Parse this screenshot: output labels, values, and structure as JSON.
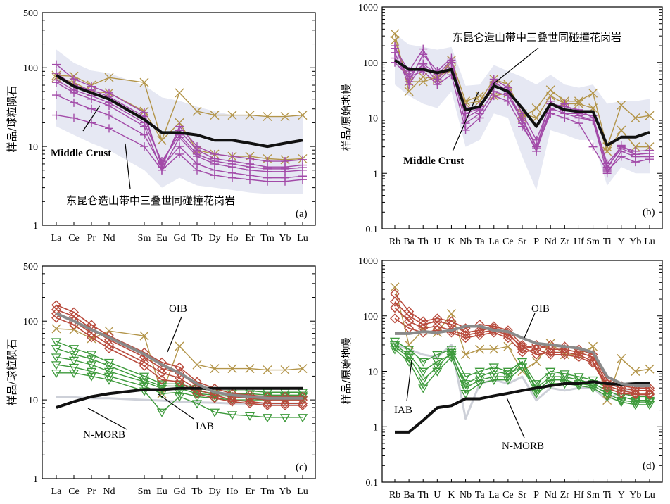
{
  "colors": {
    "black": "#111111",
    "tan": "#b3954a",
    "magenta": "#a24aa8",
    "red": "#b84a3c",
    "green": "#3d9a3b",
    "gray": "#8a8a8a",
    "lightgray": "#cdd0d8",
    "field": "#e6e8f3"
  },
  "labels": {
    "ylabel_ree": "样品/球粒陨石",
    "ylabel_pm": "样品/原始地幔",
    "middle_crust": "Middle Crust",
    "granite": "东昆仑造山带中三叠世同碰撞花岗岩",
    "oib": "OIB",
    "nmorb": "N-MORB",
    "iab": "IAB",
    "panel_a": "(a)",
    "panel_b": "(b)",
    "panel_c": "(c)",
    "panel_d": "(d)"
  },
  "chart_data": [
    {
      "panel": "a",
      "type": "line",
      "yscale": "log",
      "ylim": [
        1,
        500
      ],
      "yticks": [
        "1",
        "10",
        "100",
        "500"
      ],
      "ylabel": "样品/球粒陨石",
      "categories": [
        "La",
        "Ce",
        "Pr",
        "Nd",
        "Sm",
        "Eu",
        "Gd",
        "Tb",
        "Dy",
        "Ho",
        "Er",
        "Tm",
        "Yb",
        "Lu"
      ],
      "series": [
        {
          "name": "Middle Crust",
          "values": [
            80,
            58,
            48,
            40,
            22,
            15,
            15,
            14,
            12,
            12,
            11,
            10,
            11,
            12
          ]
        },
        {
          "name": "东昆仑造山带中三叠世同碰撞花岗岩",
          "values": [
            85,
            60,
            52,
            43,
            24,
            6,
            16,
            9,
            7,
            6.5,
            6,
            5.5,
            5.5,
            5.8
          ]
        },
        {
          "values": [
            110,
            72,
            58,
            48,
            27,
            5.5,
            18,
            10,
            8,
            7.5,
            7,
            6.5,
            6.5,
            6.8
          ]
        },
        {
          "values": [
            65,
            48,
            40,
            33,
            18,
            5,
            13,
            7.5,
            6,
            5.5,
            5,
            4.8,
            4.8,
            5
          ]
        },
        {
          "values": [
            45,
            36,
            30,
            25,
            14,
            5.5,
            10,
            6,
            5,
            4.6,
            4.3,
            4,
            4,
            4.2
          ]
        },
        {
          "values": [
            25,
            23,
            20,
            17,
            10,
            5,
            8,
            5,
            4.3,
            4,
            3.8,
            3.6,
            3.6,
            3.8
          ]
        },
        {
          "values": [
            70,
            52,
            44,
            36,
            20,
            6.5,
            14,
            8,
            6.5,
            6,
            5.5,
            5.2,
            5.2,
            5.4
          ]
        },
        {
          "values": [
            80,
            78,
            60,
            75,
            65,
            12,
            48,
            28,
            25,
            25,
            25,
            24,
            24,
            25
          ]
        },
        {
          "values": [
            75,
            65,
            50,
            48,
            28,
            12,
            20,
            9,
            8,
            7.5,
            7.5,
            7,
            6.8,
            7
          ]
        }
      ],
      "field_upper": [
        170,
        115,
        92,
        85,
        60,
        42,
        38,
        32,
        28,
        25,
        25,
        24,
        24,
        25
      ],
      "field_lower": [
        18,
        14,
        11,
        9,
        5,
        3,
        4,
        3.2,
        3,
        2.8,
        2.6,
        2.5,
        2.5,
        2.5
      ]
    },
    {
      "panel": "b",
      "type": "line",
      "yscale": "log",
      "ylim": [
        0.1,
        1000
      ],
      "yticks": [
        "0.1",
        "1",
        "10",
        "100",
        "1000"
      ],
      "ylabel": "样品/原始地幔",
      "categories": [
        "Rb",
        "Ba",
        "Th",
        "U",
        "K",
        "Nb",
        "Ta",
        "La",
        "Ce",
        "Sr",
        "P",
        "Nd",
        "Zr",
        "Hf",
        "Sm",
        "Ti",
        "Y",
        "Yb",
        "Lu"
      ],
      "series": [
        {
          "name": "Middle Crust",
          "values": [
            110,
            75,
            75,
            65,
            75,
            14,
            16,
            38,
            30,
            15,
            7,
            18,
            14,
            13,
            13,
            3.2,
            4.5,
            4.5,
            5.5
          ]
        },
        {
          "values": [
            150,
            40,
            95,
            60,
            110,
            12,
            15,
            40,
            28,
            10,
            3,
            20,
            12,
            12,
            11,
            1.2,
            3.2,
            2.2,
            2.3
          ]
        },
        {
          "values": [
            200,
            45,
            140,
            70,
            120,
            10,
            14,
            50,
            35,
            12,
            4,
            18,
            16,
            14,
            10,
            1.5,
            3,
            2.5,
            2.6
          ]
        },
        {
          "values": [
            180,
            70,
            175,
            50,
            100,
            15,
            16,
            45,
            30,
            8,
            2.5,
            14,
            18,
            11,
            9,
            1.0,
            2.5,
            2,
            2
          ]
        },
        {
          "values": [
            120,
            60,
            90,
            45,
            80,
            8,
            12,
            30,
            25,
            9,
            3,
            15,
            12,
            10,
            9,
            1.3,
            2.8,
            2.2,
            2.3
          ]
        },
        {
          "values": [
            100,
            55,
            70,
            40,
            60,
            6,
            10,
            25,
            20,
            7,
            2.8,
            12,
            10,
            8,
            3,
            1.1,
            2,
            1.6,
            1.8
          ]
        },
        {
          "values": [
            330,
            30,
            55,
            50,
            110,
            20,
            25,
            25,
            28,
            10,
            15,
            32,
            20,
            20,
            28,
            3,
            17,
            10,
            11
          ]
        },
        {
          "values": [
            250,
            45,
            45,
            55,
            75,
            18,
            20,
            50,
            40,
            12,
            10,
            25,
            18,
            18,
            15,
            2.5,
            6,
            3,
            3
          ]
        }
      ],
      "field_upper": [
        330,
        210,
        190,
        170,
        190,
        38,
        40,
        90,
        70,
        55,
        40,
        60,
        40,
        35,
        40,
        18,
        20,
        20,
        22
      ],
      "field_lower": [
        40,
        25,
        18,
        15,
        30,
        3,
        4,
        12,
        10,
        2,
        0.5,
        6,
        5,
        4,
        4,
        0.6,
        1.3,
        1.0,
        1.0
      ]
    },
    {
      "panel": "c",
      "type": "line",
      "yscale": "log",
      "ylim": [
        1,
        500
      ],
      "yticks": [
        "1",
        "10",
        "100",
        "500"
      ],
      "ylabel": "样品/球粒陨石",
      "categories": [
        "La",
        "Ce",
        "Pr",
        "Nd",
        "Sm",
        "Eu",
        "Gd",
        "Tb",
        "Dy",
        "Ho",
        "Er",
        "Tm",
        "Yb",
        "Lu"
      ],
      "series": [
        {
          "name": "OIB",
          "values": [
            125,
            100,
            78,
            62,
            38,
            28,
            22,
            16,
            12.5,
            11.5,
            11,
            10.5,
            10.5,
            10.5
          ]
        },
        {
          "name": "N-MORB",
          "values": [
            8,
            9.5,
            11,
            12,
            13.5,
            13.5,
            14,
            14,
            14,
            14,
            14,
            14,
            14,
            14
          ]
        },
        {
          "name": "IAB",
          "values": [
            11,
            10.8,
            10.5,
            10.5,
            10,
            9.8,
            9.5,
            9.3,
            9.2,
            9,
            9,
            9,
            9,
            9
          ]
        },
        {
          "values": [
            160,
            130,
            90,
            65,
            40,
            30,
            26,
            17,
            14,
            12,
            11.5,
            11,
            11,
            11
          ]
        },
        {
          "values": [
            140,
            115,
            80,
            58,
            35,
            25,
            22,
            15,
            12.5,
            11,
            10.5,
            10,
            10,
            10
          ]
        },
        {
          "values": [
            125,
            100,
            70,
            50,
            30,
            22,
            19,
            13.5,
            11.5,
            10,
            9.5,
            9,
            9,
            9
          ]
        },
        {
          "values": [
            110,
            90,
            62,
            45,
            27,
            18,
            17,
            12,
            10.5,
            9.5,
            9,
            8.5,
            8.5,
            8.5
          ]
        },
        {
          "values": [
            80,
            78,
            60,
            75,
            65,
            12,
            48,
            28,
            25,
            25,
            25,
            24,
            24,
            25
          ]
        },
        {
          "values": [
            55,
            45,
            38,
            30,
            20,
            16,
            16,
            14,
            13,
            13,
            13,
            12.5,
            12.5,
            12.5
          ]
        },
        {
          "values": [
            45,
            38,
            33,
            27,
            18,
            15,
            15,
            13,
            12,
            12,
            12,
            11.5,
            11.5,
            11.5
          ]
        },
        {
          "values": [
            35,
            32,
            28,
            23,
            17,
            14,
            14,
            12,
            11.5,
            11,
            11,
            11,
            11,
            11
          ]
        },
        {
          "values": [
            28,
            26,
            23,
            20,
            15,
            12,
            12.5,
            11,
            10.5,
            10,
            10,
            10,
            10,
            10
          ]
        },
        {
          "values": [
            22,
            22,
            20,
            18,
            13,
            7,
            11,
            9,
            7,
            6.5,
            6.3,
            6,
            6,
            6
          ]
        }
      ]
    },
    {
      "panel": "d",
      "type": "line",
      "yscale": "log",
      "ylim": [
        0.1,
        1000
      ],
      "yticks": [
        "0.1",
        "1",
        "10",
        "100",
        "1000"
      ],
      "ylabel": "样品/原始地幔",
      "categories": [
        "Rb",
        "Ba",
        "Th",
        "U",
        "K",
        "Nb",
        "Ta",
        "La",
        "Ce",
        "Sr",
        "P",
        "Nd",
        "Zr",
        "Hf",
        "Sm",
        "Ti",
        "Y",
        "Yb",
        "Lu"
      ],
      "series": [
        {
          "name": "OIB",
          "values": [
            48,
            48,
            52,
            50,
            55,
            65,
            65,
            55,
            52,
            40,
            32,
            30,
            28,
            26,
            22,
            8,
            6,
            5.5,
            5.5
          ]
        },
        {
          "name": "N-MORB",
          "values": [
            0.8,
            0.8,
            1.3,
            2.2,
            2.4,
            3.2,
            3.2,
            3.6,
            4,
            4.5,
            5,
            5.5,
            6,
            6,
            6.5,
            6,
            5.8,
            6,
            6
          ]
        },
        {
          "name": "IAB",
          "values": [
            30,
            25,
            20,
            18,
            30,
            1.4,
            6,
            7,
            6,
            8,
            3,
            5,
            4.5,
            5,
            5,
            3,
            4.5,
            5,
            5
          ]
        },
        {
          "values": [
            250,
            120,
            80,
            90,
            80,
            60,
            70,
            65,
            55,
            30,
            25,
            30,
            28,
            25,
            20,
            7,
            5.5,
            5,
            5
          ]
        },
        {
          "values": [
            180,
            100,
            70,
            80,
            70,
            50,
            55,
            60,
            50,
            25,
            30,
            25,
            25,
            22,
            18,
            6,
            5,
            4.5,
            4.5
          ]
        },
        {
          "values": [
            140,
            80,
            60,
            65,
            55,
            45,
            50,
            55,
            45,
            28,
            20,
            22,
            22,
            20,
            15,
            5.5,
            4.5,
            4,
            4
          ]
        },
        {
          "values": [
            90,
            60,
            50,
            55,
            50,
            40,
            45,
            50,
            40,
            22,
            25,
            20,
            20,
            18,
            14,
            5,
            4,
            3.8,
            3.8
          ]
        },
        {
          "values": [
            330,
            30,
            55,
            50,
            110,
            20,
            25,
            25,
            28,
            10,
            15,
            32,
            20,
            20,
            28,
            3,
            17,
            10,
            11
          ]
        },
        {
          "values": [
            35,
            25,
            15,
            20,
            25,
            8,
            10,
            12,
            10,
            15,
            6,
            10,
            9,
            8,
            7,
            5,
            4,
            3.5,
            3.5
          ]
        },
        {
          "values": [
            30,
            20,
            10,
            15,
            20,
            6,
            8,
            10,
            9,
            12,
            5,
            8,
            8,
            7,
            6,
            4.5,
            3.5,
            3,
            3
          ]
        },
        {
          "values": [
            28,
            18,
            7,
            12,
            22,
            5,
            7,
            8,
            8,
            15,
            4.5,
            7,
            7,
            6,
            5.5,
            4,
            3,
            2.8,
            2.8
          ]
        },
        {
          "values": [
            25,
            15,
            5,
            10,
            18,
            4,
            6,
            7,
            7,
            12,
            4,
            6,
            6,
            5.5,
            5,
            3.5,
            2.8,
            2.5,
            2.5
          ]
        }
      ]
    }
  ]
}
